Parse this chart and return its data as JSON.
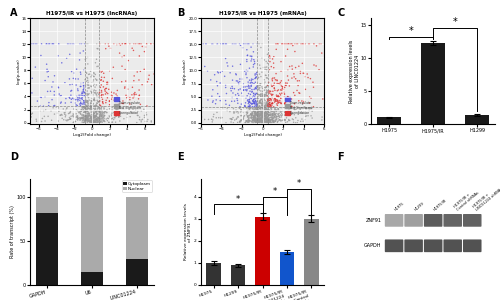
{
  "panel_A_title": "H1975/IR vs H1975 (lncRNAs)",
  "panel_B_title": "H1975/IR vs H1975 (mRNAs)",
  "panel_C_ylabel": "Relative expression levels\nof LINC01224",
  "panel_C_categories": [
    "H1975",
    "H1975/IR",
    "H1299"
  ],
  "panel_C_values": [
    1.0,
    12.2,
    1.4
  ],
  "panel_C_errors": [
    0.1,
    0.3,
    0.15
  ],
  "panel_C_colors": [
    "#1a1a1a",
    "#1a1a1a",
    "#1a1a1a"
  ],
  "panel_D_ylabel": "Rate of transcript (%)",
  "panel_D_categories": [
    "GAPDH",
    "U6",
    "LINC01224"
  ],
  "panel_D_nuclear": [
    18,
    85,
    70
  ],
  "panel_D_cytoplasm": [
    82,
    15,
    30
  ],
  "panel_D_nuclear_color": "#aaaaaa",
  "panel_D_cytoplasm_color": "#1a1a1a",
  "panel_E_ylabel": "Relative expression levels\nof ZNF91",
  "panel_E_categories": [
    "H1975",
    "H1299",
    "H1975/IR",
    "H1975/IR\n+LINC01224\nsiRNAs",
    "H1975/IR\n+Control\nsiRNAs"
  ],
  "panel_E_values": [
    1.0,
    0.9,
    3.1,
    1.5,
    3.0
  ],
  "panel_E_errors": [
    0.08,
    0.07,
    0.15,
    0.1,
    0.15
  ],
  "panel_E_colors": [
    "#333333",
    "#333333",
    "#cc0000",
    "#1155cc",
    "#888888"
  ],
  "panel_F_lane_labels": [
    "H1975",
    "H1299",
    "H1975/IR",
    "H1975/IR +\nControl shRNAs",
    "H1975/IR +\nLINC01224 shRNAs"
  ],
  "panel_F_znf91": [
    0.45,
    0.5,
    0.85,
    0.8,
    0.82
  ],
  "panel_F_gapdh": [
    0.9,
    0.9,
    0.9,
    0.9,
    0.9
  ],
  "bg_color": "#ffffff",
  "volcano_bg": "#ebebeb",
  "grid_color": "#ffffff",
  "volcano_A_seed": 12,
  "volcano_B_seed": 55
}
